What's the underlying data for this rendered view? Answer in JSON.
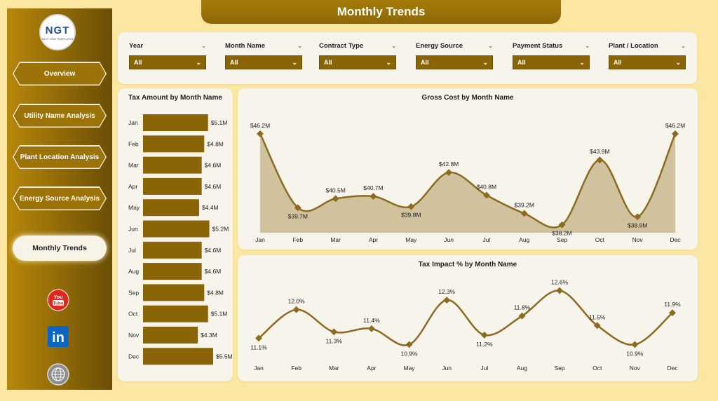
{
  "header": {
    "title": "Monthly Trends"
  },
  "logo": {
    "text": "NGT",
    "subtext": "NEXT GEN TEMPLATES"
  },
  "nav": [
    {
      "label": "Overview",
      "active": false
    },
    {
      "label": "Utility Name Analysis",
      "active": false
    },
    {
      "label": "Plant Location Analysis",
      "active": false
    },
    {
      "label": "Energy Source Analysis",
      "active": false
    },
    {
      "label": "Monthly Trends",
      "active": true
    }
  ],
  "social": {
    "youtube_text": "You Tube",
    "linkedin_text": "in"
  },
  "filters": [
    {
      "label": "Year",
      "value": "All"
    },
    {
      "label": "Month Name",
      "value": "All"
    },
    {
      "label": "Contract Type",
      "value": "All"
    },
    {
      "label": "Energy Source",
      "value": "All"
    },
    {
      "label": "Payment Status",
      "value": "All"
    },
    {
      "label": "Plant / Location",
      "value": "All"
    }
  ],
  "colors": {
    "accent": "#8a6508",
    "line": "#8c6a1e",
    "area": "#c9b98f",
    "sidebar": "#9c7309"
  },
  "chart_data": [
    {
      "type": "bar",
      "title": "Tax Amount by Month Name",
      "orientation": "horizontal",
      "categories": [
        "Jan",
        "Feb",
        "Mar",
        "Apr",
        "May",
        "Jun",
        "Jul",
        "Aug",
        "Sep",
        "Oct",
        "Nov",
        "Dec"
      ],
      "values": [
        5.1,
        4.8,
        4.6,
        4.6,
        4.4,
        5.2,
        4.6,
        4.6,
        4.8,
        5.1,
        4.3,
        5.5
      ],
      "labels": [
        "$5.1M",
        "$4.8M",
        "$4.6M",
        "$4.6M",
        "$4.4M",
        "$5.2M",
        "$4.6M",
        "$4.6M",
        "$4.8M",
        "$5.1M",
        "$4.3M",
        "$5.5M"
      ]
    },
    {
      "type": "area",
      "title": "Gross Cost by Month Name",
      "categories": [
        "Jan",
        "Feb",
        "Mar",
        "Apr",
        "May",
        "Jun",
        "Jul",
        "Aug",
        "Sep",
        "Oct",
        "Nov",
        "Dec"
      ],
      "values": [
        46.2,
        39.7,
        40.5,
        40.7,
        39.8,
        42.8,
        40.8,
        39.2,
        38.2,
        43.9,
        38.9,
        46.2
      ],
      "labels": [
        "$46.2M",
        "$39.7M",
        "$40.5M",
        "$40.7M",
        "$39.8M",
        "$42.8M",
        "$40.8M",
        "$39.2M",
        "$38.2M",
        "$43.9M",
        "$38.9M",
        "$46.2M"
      ],
      "ylim": [
        37.5,
        46.5
      ]
    },
    {
      "type": "line",
      "title": "Tax Impact % by Month Name",
      "categories": [
        "Jan",
        "Feb",
        "Mar",
        "Apr",
        "May",
        "Jun",
        "Jul",
        "Aug",
        "Sep",
        "Oct",
        "Nov",
        "Dec"
      ],
      "values": [
        11.1,
        12.0,
        11.3,
        11.4,
        10.9,
        12.3,
        11.2,
        11.8,
        12.6,
        11.5,
        10.9,
        11.9
      ],
      "labels": [
        "11.1%",
        "12.0%",
        "11.3%",
        "11.4%",
        "10.9%",
        "12.3%",
        "11.2%",
        "11.8%",
        "12.6%",
        "11.5%",
        "10.9%",
        "11.9%"
      ],
      "ylim": [
        10.8,
        12.7
      ]
    }
  ]
}
